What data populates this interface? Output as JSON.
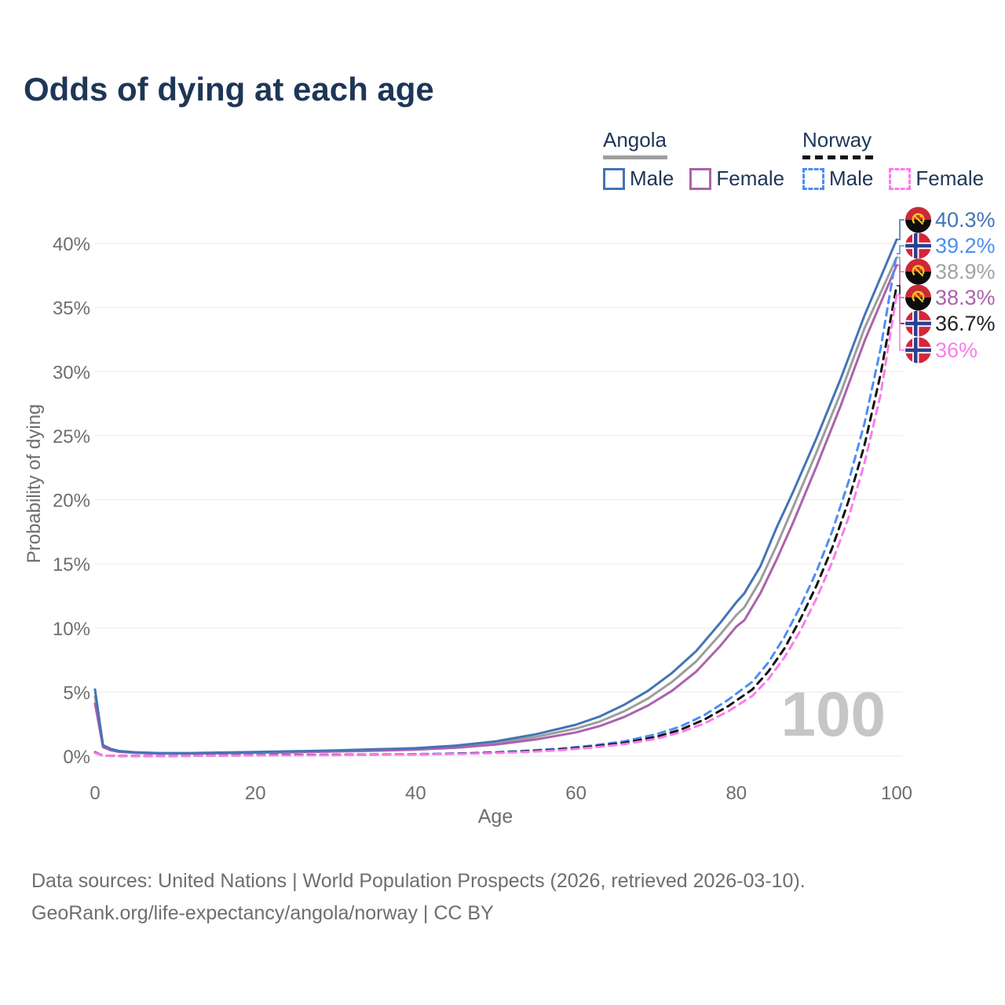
{
  "title": "Odds of dying at each age",
  "legend": {
    "groups": [
      {
        "country": "Angola",
        "line_style": "solid",
        "underline_color": "#9e9e9e",
        "items": [
          {
            "label": "Male",
            "color": "#4374b5"
          },
          {
            "label": "Female",
            "color": "#ab62ad"
          }
        ]
      },
      {
        "country": "Norway",
        "line_style": "dashed",
        "underline_color": "#141414",
        "items": [
          {
            "label": "Male",
            "color": "#4d8ef2"
          },
          {
            "label": "Female",
            "color": "#fa7de9"
          }
        ]
      }
    ]
  },
  "chart_data": {
    "type": "line",
    "title": "Odds of dying at each age",
    "xlabel": "Age",
    "ylabel": "Probability of dying",
    "xlim": [
      0,
      100
    ],
    "ylim": [
      0,
      43
    ],
    "grid": "horizontal",
    "gridline_color": "#ececec",
    "x_ticks": [
      0,
      20,
      40,
      60,
      80,
      100
    ],
    "y_ticks": [
      {
        "value": 0,
        "label": "0%"
      },
      {
        "value": 5,
        "label": "5%"
      },
      {
        "value": 10,
        "label": "10%"
      },
      {
        "value": 15,
        "label": "15%"
      },
      {
        "value": 20,
        "label": "20%"
      },
      {
        "value": 25,
        "label": "25%"
      },
      {
        "value": 30,
        "label": "30%"
      },
      {
        "value": 35,
        "label": "35%"
      },
      {
        "value": 40,
        "label": "40%"
      }
    ],
    "age_indicator": "100",
    "series": [
      {
        "name": "Angola combined",
        "country": "Angola",
        "sex": "combined",
        "color": "#9d9d9d",
        "dash": "solid",
        "points": [
          [
            0,
            4.65
          ],
          [
            1,
            0.78
          ],
          [
            2,
            0.5
          ],
          [
            3,
            0.37
          ],
          [
            5,
            0.28
          ],
          [
            8,
            0.22
          ],
          [
            12,
            0.22
          ],
          [
            16,
            0.25
          ],
          [
            20,
            0.29
          ],
          [
            25,
            0.34
          ],
          [
            30,
            0.4
          ],
          [
            35,
            0.47
          ],
          [
            40,
            0.56
          ],
          [
            45,
            0.73
          ],
          [
            50,
            1.02
          ],
          [
            55,
            1.5
          ],
          [
            60,
            2.15
          ],
          [
            63,
            2.7
          ],
          [
            66,
            3.5
          ],
          [
            69,
            4.5
          ],
          [
            72,
            5.8
          ],
          [
            75,
            7.4
          ],
          [
            78,
            9.5
          ],
          [
            80,
            11.0
          ],
          [
            81,
            11.6
          ],
          [
            83,
            13.7
          ],
          [
            85,
            16.4
          ],
          [
            87,
            19.3
          ],
          [
            90,
            23.7
          ],
          [
            93,
            28.3
          ],
          [
            96,
            33.4
          ],
          [
            100,
            38.9
          ]
        ]
      },
      {
        "name": "Angola Female",
        "country": "Angola",
        "sex": "female",
        "color": "#ab62ad",
        "dash": "solid",
        "points": [
          [
            0,
            4.1
          ],
          [
            1,
            0.7
          ],
          [
            2,
            0.45
          ],
          [
            3,
            0.33
          ],
          [
            5,
            0.25
          ],
          [
            8,
            0.2
          ],
          [
            12,
            0.2
          ],
          [
            16,
            0.22
          ],
          [
            20,
            0.26
          ],
          [
            25,
            0.3
          ],
          [
            30,
            0.36
          ],
          [
            35,
            0.42
          ],
          [
            40,
            0.5
          ],
          [
            45,
            0.65
          ],
          [
            50,
            0.9
          ],
          [
            55,
            1.3
          ],
          [
            60,
            1.85
          ],
          [
            63,
            2.35
          ],
          [
            66,
            3.05
          ],
          [
            69,
            3.95
          ],
          [
            72,
            5.1
          ],
          [
            75,
            6.6
          ],
          [
            78,
            8.6
          ],
          [
            80,
            10.1
          ],
          [
            81,
            10.6
          ],
          [
            83,
            12.7
          ],
          [
            85,
            15.3
          ],
          [
            87,
            18.1
          ],
          [
            90,
            22.6
          ],
          [
            93,
            27.3
          ],
          [
            96,
            32.4
          ],
          [
            100,
            38.3
          ]
        ]
      },
      {
        "name": "Angola Male",
        "country": "Angola",
        "sex": "male",
        "color": "#4374b5",
        "dash": "solid",
        "points": [
          [
            0,
            5.2
          ],
          [
            1,
            0.85
          ],
          [
            2,
            0.55
          ],
          [
            3,
            0.4
          ],
          [
            5,
            0.3
          ],
          [
            8,
            0.24
          ],
          [
            12,
            0.24
          ],
          [
            16,
            0.28
          ],
          [
            20,
            0.32
          ],
          [
            25,
            0.38
          ],
          [
            30,
            0.45
          ],
          [
            35,
            0.53
          ],
          [
            40,
            0.62
          ],
          [
            45,
            0.82
          ],
          [
            50,
            1.15
          ],
          [
            55,
            1.7
          ],
          [
            60,
            2.45
          ],
          [
            63,
            3.1
          ],
          [
            66,
            4.0
          ],
          [
            69,
            5.1
          ],
          [
            72,
            6.5
          ],
          [
            75,
            8.2
          ],
          [
            78,
            10.4
          ],
          [
            80,
            12.0
          ],
          [
            81,
            12.7
          ],
          [
            83,
            14.8
          ],
          [
            85,
            17.8
          ],
          [
            87,
            20.5
          ],
          [
            90,
            24.8
          ],
          [
            93,
            29.4
          ],
          [
            96,
            34.4
          ],
          [
            100,
            40.3
          ]
        ]
      },
      {
        "name": "Norway Male",
        "country": "Norway",
        "sex": "male",
        "color": "#4d8ef2",
        "dash": "dashed",
        "points": [
          [
            0,
            0.3
          ],
          [
            1,
            0.03
          ],
          [
            3,
            0.02
          ],
          [
            6,
            0.02
          ],
          [
            10,
            0.02
          ],
          [
            14,
            0.04
          ],
          [
            18,
            0.07
          ],
          [
            22,
            0.09
          ],
          [
            26,
            0.1
          ],
          [
            30,
            0.11
          ],
          [
            34,
            0.12
          ],
          [
            38,
            0.14
          ],
          [
            42,
            0.17
          ],
          [
            46,
            0.22
          ],
          [
            50,
            0.3
          ],
          [
            54,
            0.42
          ],
          [
            58,
            0.58
          ],
          [
            62,
            0.82
          ],
          [
            66,
            1.15
          ],
          [
            70,
            1.7
          ],
          [
            73,
            2.3
          ],
          [
            76,
            3.2
          ],
          [
            79,
            4.4
          ],
          [
            82,
            5.8
          ],
          [
            84,
            7.3
          ],
          [
            86,
            9.3
          ],
          [
            88,
            11.7
          ],
          [
            90,
            14.4
          ],
          [
            92,
            17.6
          ],
          [
            94,
            21.4
          ],
          [
            96,
            26.0
          ],
          [
            98,
            31.8
          ],
          [
            100,
            39.2
          ]
        ]
      },
      {
        "name": "Norway combined",
        "country": "Norway",
        "sex": "combined",
        "color": "#141414",
        "dash": "dashed",
        "points": [
          [
            0,
            0.28
          ],
          [
            1,
            0.03
          ],
          [
            3,
            0.02
          ],
          [
            6,
            0.02
          ],
          [
            10,
            0.02
          ],
          [
            14,
            0.035
          ],
          [
            18,
            0.06
          ],
          [
            22,
            0.08
          ],
          [
            26,
            0.09
          ],
          [
            30,
            0.1
          ],
          [
            34,
            0.11
          ],
          [
            38,
            0.13
          ],
          [
            42,
            0.15
          ],
          [
            46,
            0.2
          ],
          [
            50,
            0.27
          ],
          [
            54,
            0.38
          ],
          [
            58,
            0.52
          ],
          [
            62,
            0.74
          ],
          [
            66,
            1.03
          ],
          [
            70,
            1.5
          ],
          [
            73,
            2.05
          ],
          [
            76,
            2.85
          ],
          [
            79,
            3.9
          ],
          [
            82,
            5.2
          ],
          [
            84,
            6.6
          ],
          [
            86,
            8.4
          ],
          [
            88,
            10.7
          ],
          [
            90,
            13.3
          ],
          [
            92,
            16.3
          ],
          [
            94,
            19.9
          ],
          [
            96,
            24.3
          ],
          [
            98,
            29.8
          ],
          [
            100,
            36.7
          ]
        ]
      },
      {
        "name": "Norway Female",
        "country": "Norway",
        "sex": "female",
        "color": "#fa7de9",
        "dash": "dashed",
        "points": [
          [
            0,
            0.25
          ],
          [
            1,
            0.03
          ],
          [
            3,
            0.02
          ],
          [
            6,
            0.01
          ],
          [
            10,
            0.01
          ],
          [
            14,
            0.03
          ],
          [
            18,
            0.05
          ],
          [
            22,
            0.06
          ],
          [
            26,
            0.07
          ],
          [
            30,
            0.08
          ],
          [
            34,
            0.1
          ],
          [
            38,
            0.12
          ],
          [
            42,
            0.14
          ],
          [
            46,
            0.18
          ],
          [
            50,
            0.24
          ],
          [
            54,
            0.33
          ],
          [
            58,
            0.46
          ],
          [
            62,
            0.66
          ],
          [
            66,
            0.93
          ],
          [
            70,
            1.35
          ],
          [
            73,
            1.85
          ],
          [
            76,
            2.55
          ],
          [
            79,
            3.5
          ],
          [
            82,
            4.7
          ],
          [
            84,
            6.0
          ],
          [
            86,
            7.7
          ],
          [
            88,
            9.8
          ],
          [
            90,
            12.3
          ],
          [
            92,
            15.2
          ],
          [
            94,
            18.6
          ],
          [
            96,
            22.9
          ],
          [
            98,
            28.2
          ],
          [
            100,
            36.0
          ]
        ]
      }
    ],
    "end_labels": [
      {
        "country": "Angola",
        "label": "40.3%",
        "value": 40.3,
        "color": "#4374b5"
      },
      {
        "country": "Norway",
        "label": "39.2%",
        "value": 39.2,
        "color": "#4d8ef2"
      },
      {
        "country": "Angola",
        "label": "38.9%",
        "value": 38.9,
        "color": "#a3a3a3"
      },
      {
        "country": "Angola",
        "label": "38.3%",
        "value": 38.3,
        "color": "#ab62ad"
      },
      {
        "country": "Norway",
        "label": "36.7%",
        "value": 36.7,
        "color": "#222222"
      },
      {
        "country": "Norway",
        "label": "36%",
        "value": 36.0,
        "color": "#fa7de9"
      }
    ],
    "flag_colors": {
      "angola_red": "#cc2936",
      "angola_black": "#0c0c0c",
      "angola_yellow": "#f5c51d",
      "norway_red": "#d5253b",
      "norway_blue": "#29418f",
      "norway_white": "#ffffff"
    }
  },
  "footer": {
    "line1": "Data sources: United Nations | World Population Prospects (2026, retrieved 2026-03-10).",
    "line2": "GeoRank.org/life-expectancy/angola/norway | CC BY"
  }
}
